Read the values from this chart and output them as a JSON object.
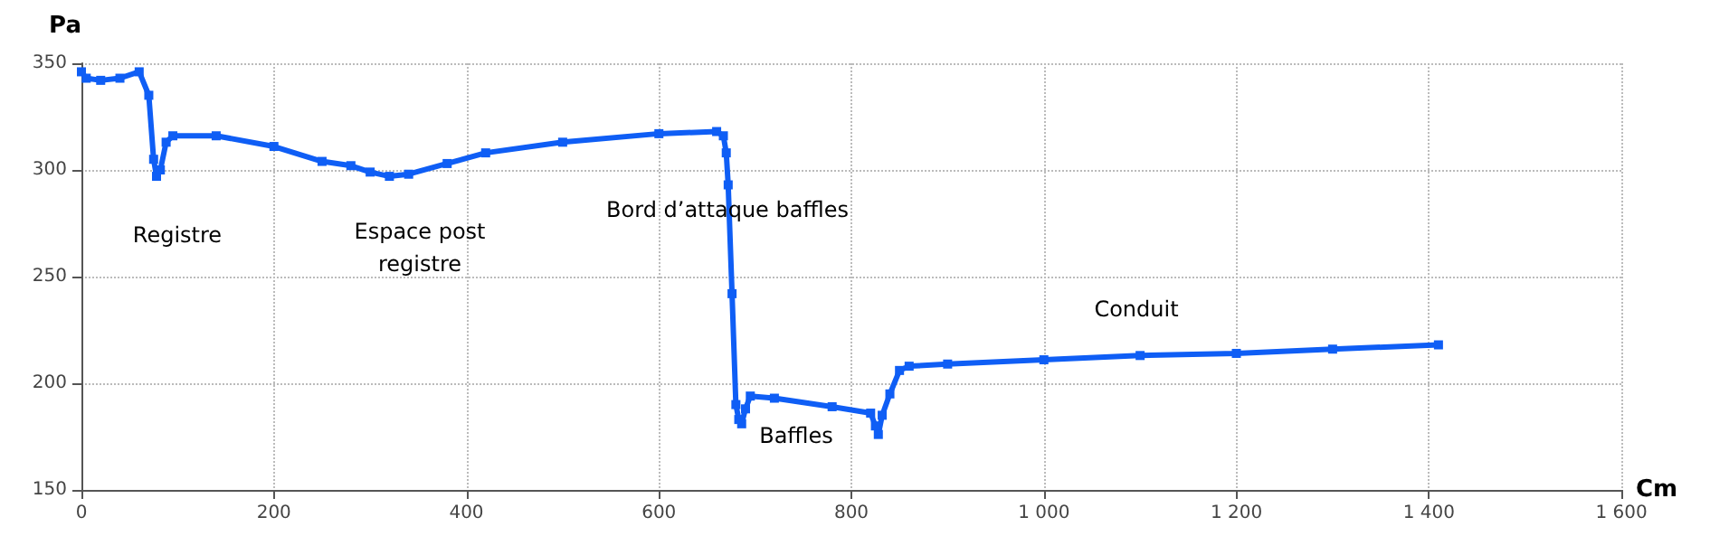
{
  "chart_data": {
    "type": "line",
    "xlabel": "Cm",
    "ylabel": "Pa",
    "x": [
      0,
      5,
      20,
      40,
      60,
      70,
      75,
      78,
      82,
      88,
      95,
      140,
      200,
      250,
      280,
      300,
      320,
      340,
      380,
      420,
      500,
      600,
      660,
      667,
      670,
      672,
      676,
      680,
      683,
      686,
      690,
      695,
      720,
      780,
      820,
      825,
      828,
      832,
      840,
      850,
      860,
      900,
      1000,
      1100,
      1200,
      1300,
      1410
    ],
    "series": [
      {
        "color": "#0f5ef5",
        "values": [
          346,
          343,
          342,
          343,
          346,
          335,
          305,
          297,
          300,
          313,
          316,
          316,
          311,
          304,
          302,
          299,
          297,
          298,
          303,
          308,
          313,
          317,
          318,
          316,
          308,
          293,
          242,
          190,
          183,
          181,
          188,
          194,
          193,
          189,
          186,
          180,
          176,
          185,
          195,
          206,
          208,
          209,
          211,
          213,
          214,
          216,
          218
        ]
      }
    ],
    "xlim": [
      0,
      1600
    ],
    "xticks": [
      0,
      200,
      400,
      600,
      800,
      {
        "value": 1000,
        "label": "1 000"
      },
      {
        "value": 1200,
        "label": "1 200"
      },
      {
        "value": 1400,
        "label": "1 400"
      },
      {
        "value": 1600,
        "label": "1 600"
      }
    ],
    "ylim": [
      150,
      350
    ],
    "yticks": [
      150,
      200,
      250,
      300,
      350
    ],
    "grid": true,
    "marker": "square",
    "line_style": "solid",
    "annotations": [
      "Registre",
      "Espace post\nregistre",
      "Bord d’attaque baffles",
      "Baffles",
      "Conduit"
    ]
  }
}
